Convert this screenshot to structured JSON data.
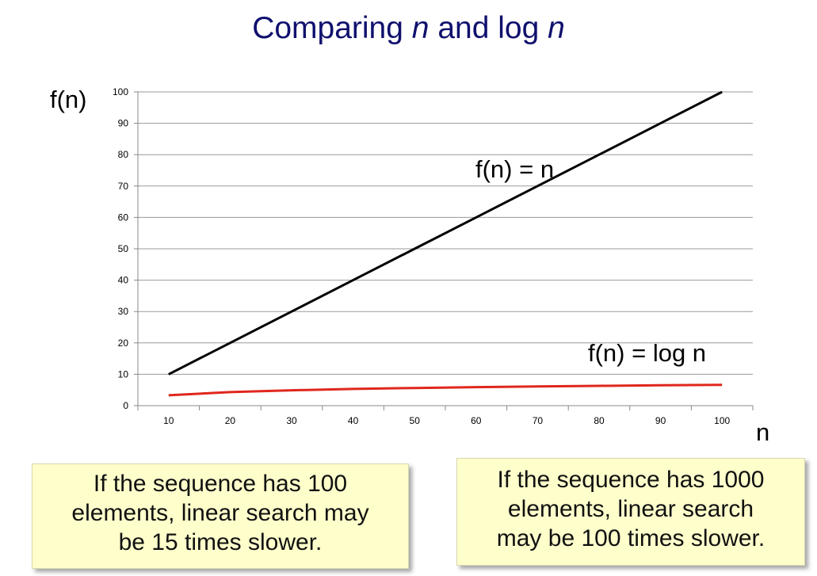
{
  "title": {
    "prefix": "Comparing ",
    "var1": "n",
    "middle": " and log ",
    "var2": "n"
  },
  "chart_data": {
    "type": "line",
    "ylabel": "f(n)",
    "xlabel": "n",
    "x": [
      10,
      20,
      30,
      40,
      50,
      60,
      70,
      80,
      90,
      100
    ],
    "xlim": [
      10,
      100
    ],
    "ylim": [
      0,
      100
    ],
    "yticks": [
      0,
      10,
      20,
      30,
      40,
      50,
      60,
      70,
      80,
      90,
      100
    ],
    "grid": true,
    "series": [
      {
        "name": "f(n) = n",
        "color": "#000000",
        "values": [
          10,
          20,
          30,
          40,
          50,
          60,
          70,
          80,
          90,
          100
        ]
      },
      {
        "name": "f(n) = log n",
        "color": "#e0271d",
        "values": [
          3.32,
          4.32,
          4.91,
          5.32,
          5.64,
          5.91,
          6.13,
          6.32,
          6.49,
          6.64
        ]
      }
    ]
  },
  "notes": {
    "left": [
      "If the sequence has 100",
      "elements, linear search may",
      "be 15 times slower."
    ],
    "right": [
      "If the sequence has 1000",
      "elements, linear search",
      "may be 100 times slower."
    ]
  }
}
